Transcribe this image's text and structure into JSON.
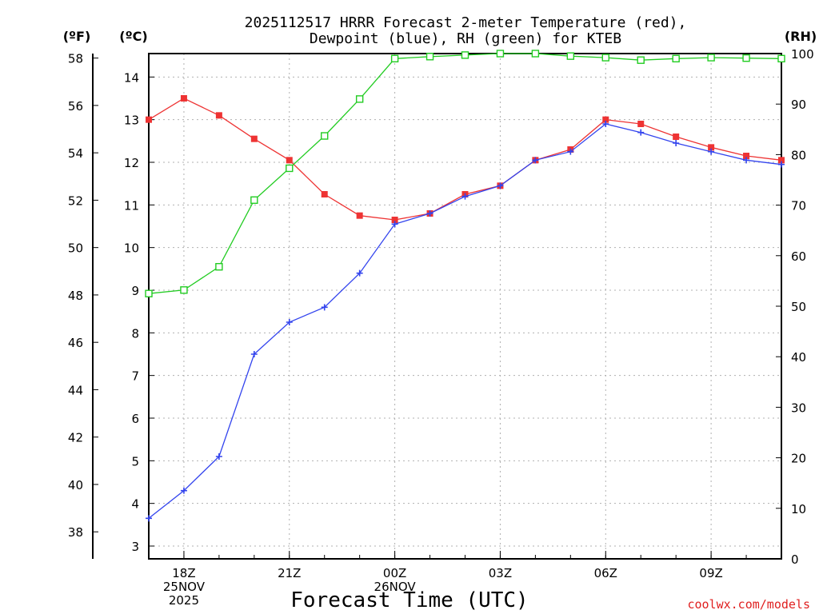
{
  "chart_data": {
    "type": "line",
    "title": "2025112517 HRRR Forecast 2-meter Temperature (red),",
    "subtitle": "Dewpoint (blue), RH (green) for KTEB",
    "xlabel": "Forecast Time (UTC)",
    "axis_units": {
      "fahrenheit": "(ºF)",
      "celsius": "(ºC)",
      "rh": "(RH)"
    },
    "credit": "coolwx.com/models",
    "x_hours": [
      17,
      18,
      19,
      20,
      21,
      22,
      23,
      24,
      25,
      26,
      27,
      28,
      29,
      30,
      31,
      32,
      33,
      34,
      35
    ],
    "xlim": [
      17,
      35
    ],
    "x_ticks": [
      {
        "hour": 18,
        "lines": [
          "18Z",
          "25NOV",
          "2025"
        ]
      },
      {
        "hour": 21,
        "lines": [
          "21Z"
        ]
      },
      {
        "hour": 24,
        "lines": [
          "00Z",
          "26NOV"
        ]
      },
      {
        "hour": 27,
        "lines": [
          "03Z"
        ]
      },
      {
        "hour": 30,
        "lines": [
          "06Z"
        ]
      },
      {
        "hour": 33,
        "lines": [
          "09Z"
        ]
      }
    ],
    "celsius_axis": {
      "ylim": [
        2.7,
        14.55
      ],
      "ticks": [
        3,
        4,
        5,
        6,
        7,
        8,
        9,
        10,
        11,
        12,
        13,
        14
      ]
    },
    "fahrenheit_axis": {
      "ylim": [
        36.86,
        58.19
      ],
      "ticks": [
        38,
        40,
        42,
        44,
        46,
        48,
        50,
        52,
        54,
        56,
        58
      ]
    },
    "rh_axis": {
      "ylim": [
        0,
        100
      ],
      "ticks": [
        0,
        10,
        20,
        30,
        40,
        50,
        60,
        70,
        80,
        90,
        100
      ]
    },
    "grid": true,
    "legend": "none (colors named in title)",
    "series": [
      {
        "name": "Temperature",
        "color": "#ee3333",
        "marker": "filled-square",
        "axis": "celsius",
        "values": [
          13.0,
          13.5,
          13.1,
          12.55,
          12.05,
          11.25,
          10.75,
          10.65,
          10.8,
          11.25,
          11.45,
          12.05,
          12.3,
          13.0,
          12.9,
          12.6,
          12.35,
          12.15,
          12.05
        ]
      },
      {
        "name": "Dewpoint",
        "color": "#3344ee",
        "marker": "plus",
        "axis": "celsius",
        "values": [
          3.65,
          4.3,
          5.1,
          7.5,
          8.25,
          8.6,
          9.4,
          10.55,
          10.8,
          11.2,
          11.45,
          12.05,
          12.25,
          12.9,
          12.7,
          12.45,
          12.25,
          12.05,
          11.95
        ]
      },
      {
        "name": "RH",
        "color": "#22cc22",
        "marker": "open-square",
        "axis": "rh",
        "values": [
          52.5,
          53.2,
          57.8,
          71.0,
          77.3,
          83.7,
          91.0,
          99.0,
          99.4,
          99.7,
          100.0,
          100.0,
          99.5,
          99.2,
          98.7,
          99.0,
          99.2,
          99.1,
          99.0
        ]
      }
    ]
  }
}
